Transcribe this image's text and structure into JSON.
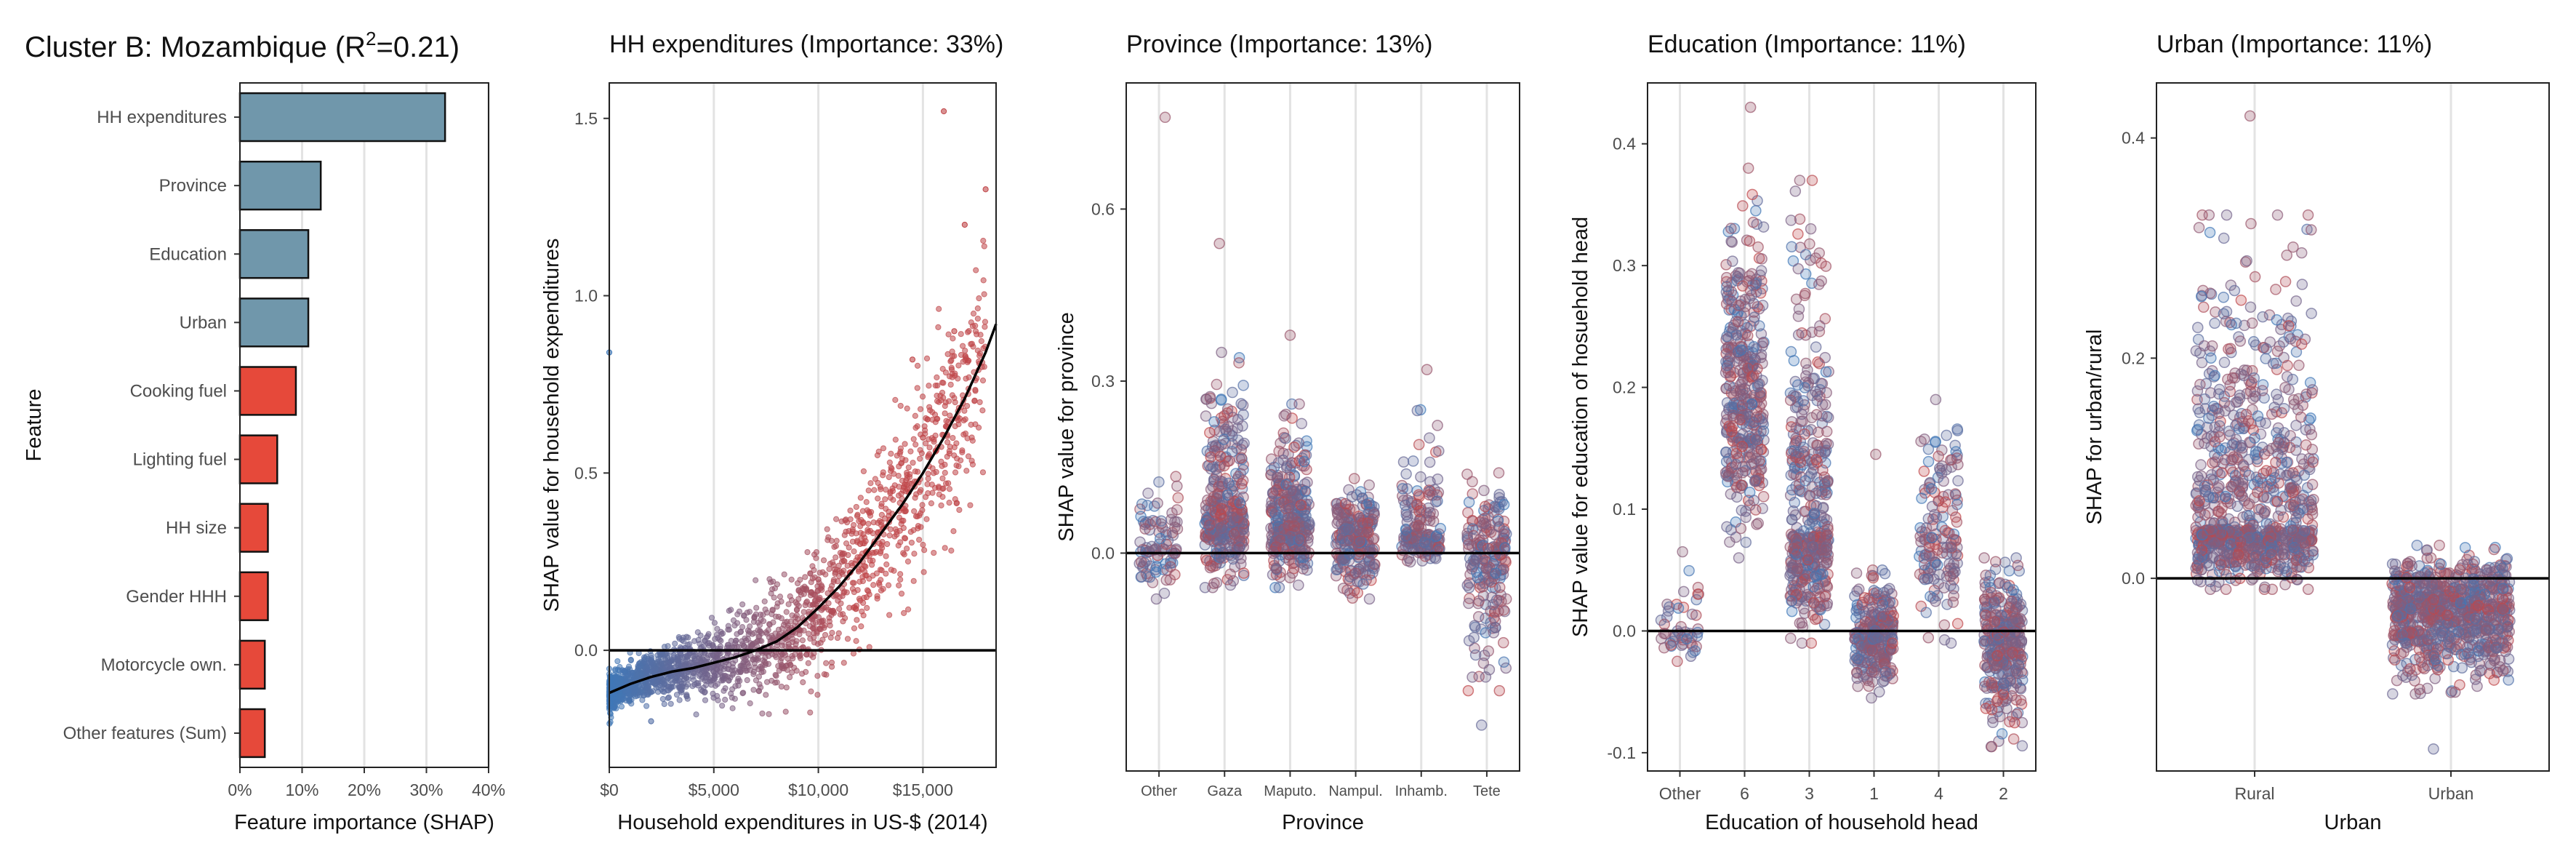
{
  "figure": {
    "title_prefix": "Cluster B: Mozambique (R",
    "title_sup": "2",
    "title_suffix": "=0.21)"
  },
  "colors": {
    "bar_blue": "#7097ab",
    "bar_red": "#e6493a",
    "point_low": "#3f78b8",
    "point_high": "#c0474a",
    "grid": "#e3e3e3"
  },
  "chart_data": [
    {
      "type": "bar",
      "orientation": "horizontal",
      "title": "",
      "xlabel": "Feature importance (SHAP)",
      "ylabel": "Feature",
      "categories": [
        "HH expenditures",
        "Province",
        "Education",
        "Urban",
        "Cooking fuel",
        "Lighting fuel",
        "HH size",
        "Gender HHH",
        "Motorcycle own.",
        "Other features (Sum)"
      ],
      "values": [
        33,
        13,
        11,
        11,
        9,
        6,
        4.5,
        4.5,
        4,
        4
      ],
      "bar_colors": [
        "blue",
        "blue",
        "blue",
        "blue",
        "red",
        "red",
        "red",
        "red",
        "red",
        "red"
      ],
      "xlim": [
        0,
        40
      ],
      "xticks": [
        0,
        10,
        20,
        30,
        40
      ],
      "xtick_labels": [
        "0%",
        "10%",
        "20%",
        "30%",
        "40%"
      ],
      "grid": true
    },
    {
      "type": "scatter",
      "title": "HH expenditures (Importance: 33%)",
      "xlabel": "Household expenditures in US-$ (2014)",
      "ylabel": "SHAP value for household expenditures",
      "xlim": [
        0,
        18500
      ],
      "ylim": [
        -0.33,
        1.6
      ],
      "xticks": [
        0,
        5000,
        10000,
        15000
      ],
      "xtick_labels": [
        "$0",
        "$5,000",
        "$10,000",
        "$15,000"
      ],
      "yticks": [
        0,
        0.5,
        1.0,
        1.5
      ],
      "ytick_labels": [
        "0.0",
        "0.5",
        "1.0",
        "1.5"
      ],
      "trend_line": {
        "x": [
          0,
          1000,
          2000,
          3000,
          4000,
          5000,
          6000,
          7000,
          8000,
          9000,
          10000,
          11000,
          12000,
          13000,
          14000,
          15000,
          16000,
          17000,
          18000,
          18500
        ],
        "y": [
          -0.12,
          -0.095,
          -0.075,
          -0.06,
          -0.05,
          -0.035,
          -0.02,
          0.0,
          0.025,
          0.065,
          0.12,
          0.18,
          0.25,
          0.33,
          0.41,
          0.5,
          0.6,
          0.71,
          0.84,
          0.92
        ]
      },
      "scatter_summary": {
        "points": [
          [
            2000,
            -0.2
          ],
          [
            5000,
            -0.03
          ],
          [
            8000,
            0.03
          ],
          [
            10000,
            0.2
          ],
          [
            12000,
            0.3
          ],
          [
            14000,
            0.4
          ],
          [
            15000,
            0.6
          ],
          [
            16500,
            0.9
          ],
          [
            17000,
            1.2
          ],
          [
            16000,
            1.52
          ],
          [
            18000,
            1.3
          ],
          [
            0,
            0.84
          ],
          [
            14500,
            0.82
          ]
        ]
      },
      "zero_line": 0,
      "grid": true
    },
    {
      "type": "scatter",
      "subtype": "strip",
      "title": "Province (Importance: 13%)",
      "xlabel": "Province",
      "ylabel": "SHAP value for province",
      "categories": [
        "Other",
        "Gaza",
        "Maputo.",
        "Nampul.",
        "Inhamb.",
        "Tete"
      ],
      "ylim": [
        -0.38,
        0.82
      ],
      "yticks": [
        0,
        0.3,
        0.6
      ],
      "ytick_labels": [
        "0.0",
        "0.3",
        "0.6"
      ],
      "groups": [
        {
          "category": "Other",
          "center": 0.02,
          "min": -0.08,
          "max": 0.17,
          "outliers": [
            0.76
          ]
        },
        {
          "category": "Gaza",
          "center": 0.065,
          "min": -0.06,
          "max": 0.35,
          "outliers": [
            0.54
          ]
        },
        {
          "category": "Maputo.",
          "center": 0.05,
          "min": -0.06,
          "max": 0.26,
          "outliers": [
            0.38
          ]
        },
        {
          "category": "Nampul.",
          "center": 0.03,
          "min": -0.08,
          "max": 0.13,
          "outliers": []
        },
        {
          "category": "Inhamb.",
          "center": 0.035,
          "min": -0.02,
          "max": 0.25,
          "outliers": [
            0.32
          ]
        },
        {
          "category": "Tete",
          "center": -0.02,
          "min": -0.24,
          "max": 0.14,
          "outliers": [
            -0.3
          ]
        }
      ],
      "zero_line": 0,
      "grid": true
    },
    {
      "type": "scatter",
      "subtype": "strip",
      "title": "Education (Importance: 11%)",
      "xlabel": "Education of household head",
      "ylabel": "SHAP value for education of hosuehold head",
      "categories": [
        "Other",
        "6",
        "3",
        "1",
        "4",
        "2"
      ],
      "ylim": [
        -0.115,
        0.45
      ],
      "yticks": [
        -0.1,
        0,
        0.1,
        0.2,
        0.3,
        0.4
      ],
      "ytick_labels": [
        "-0.1",
        "0.0",
        "0.1",
        "0.2",
        "0.3",
        "0.4"
      ],
      "groups": [
        {
          "category": "Other",
          "center": 0.0,
          "min": -0.025,
          "max": 0.065,
          "outliers": []
        },
        {
          "category": "6",
          "center": 0.19,
          "min": 0.06,
          "max": 0.38,
          "outliers": [
            0.43
          ]
        },
        {
          "category": "3",
          "center": 0.08,
          "min": -0.01,
          "max": 0.37,
          "outliers": []
        },
        {
          "category": "1",
          "center": -0.005,
          "min": -0.055,
          "max": 0.05,
          "outliers": [
            0.145
          ]
        },
        {
          "category": "4",
          "center": 0.07,
          "min": -0.01,
          "max": 0.19,
          "outliers": []
        },
        {
          "category": "2",
          "center": -0.01,
          "min": -0.095,
          "max": 0.06,
          "outliers": []
        }
      ],
      "zero_line": 0,
      "grid": true
    },
    {
      "type": "scatter",
      "subtype": "strip",
      "title": "Urban (Importance: 11%)",
      "xlabel": "Urban",
      "ylabel": "SHAP for urban/rural",
      "categories": [
        "Rural",
        "Urban"
      ],
      "ylim": [
        -0.175,
        0.45
      ],
      "yticks": [
        0,
        0.2,
        0.4
      ],
      "ytick_labels": [
        "0.0",
        "0.2",
        "0.4"
      ],
      "groups": [
        {
          "category": "Rural",
          "center": 0.045,
          "min": -0.01,
          "max": 0.33,
          "outliers": [
            0.42
          ]
        },
        {
          "category": "Urban",
          "center": -0.03,
          "min": -0.105,
          "max": 0.03,
          "outliers": [
            -0.155
          ]
        }
      ],
      "zero_line": 0,
      "grid": true
    }
  ]
}
